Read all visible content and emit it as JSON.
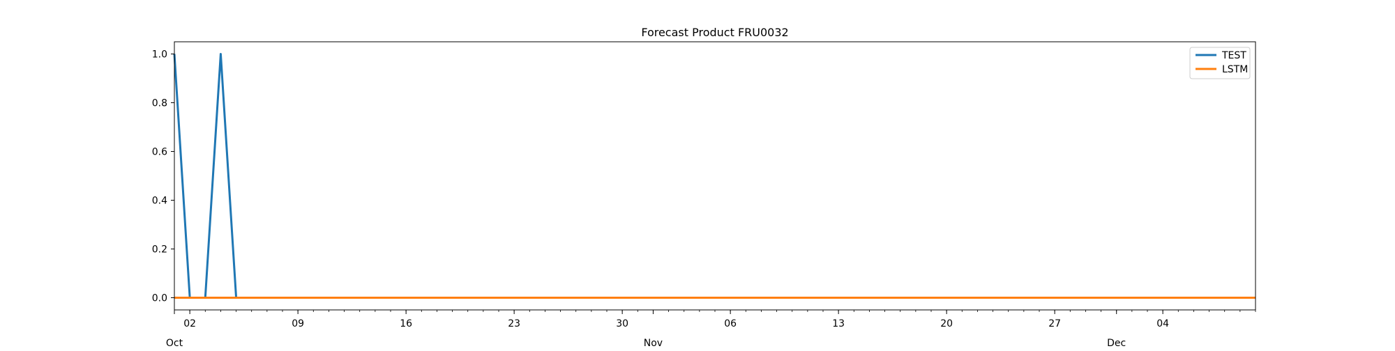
{
  "chart_data": {
    "type": "line",
    "title": "Forecast Product FRU0032",
    "xlabel": "",
    "ylabel": "",
    "x_range": [
      "2023-10-01",
      "2023-12-10"
    ],
    "ylim": [
      -0.05,
      1.05
    ],
    "y_ticks": [
      0.0,
      0.2,
      0.4,
      0.6,
      0.8,
      1.0
    ],
    "y_tick_labels": [
      "0.0",
      "0.2",
      "0.4",
      "0.6",
      "0.8",
      "1.0"
    ],
    "x_major_ticks": [
      {
        "date": "2023-10-02",
        "label": "02"
      },
      {
        "date": "2023-10-09",
        "label": "09"
      },
      {
        "date": "2023-10-16",
        "label": "16"
      },
      {
        "date": "2023-10-23",
        "label": "23"
      },
      {
        "date": "2023-10-30",
        "label": "30"
      },
      {
        "date": "2023-11-06",
        "label": "06"
      },
      {
        "date": "2023-11-13",
        "label": "13"
      },
      {
        "date": "2023-11-20",
        "label": "20"
      },
      {
        "date": "2023-11-27",
        "label": "27"
      },
      {
        "date": "2023-12-04",
        "label": "04"
      }
    ],
    "month_labels": [
      {
        "date": "2023-10-01",
        "label": "Oct"
      },
      {
        "date": "2023-11-01",
        "label": "Nov"
      },
      {
        "date": "2023-12-01",
        "label": "Dec"
      }
    ],
    "grid": false,
    "legend_position": "top-right",
    "series": [
      {
        "name": "TEST",
        "color": "#1f77b4",
        "points": [
          {
            "x": "2023-10-01",
            "y": 1
          },
          {
            "x": "2023-10-02",
            "y": 0
          },
          {
            "x": "2023-10-03",
            "y": 0
          },
          {
            "x": "2023-10-04",
            "y": 1
          },
          {
            "x": "2023-10-05",
            "y": 0
          },
          {
            "x": "2023-12-10",
            "y": 0
          }
        ]
      },
      {
        "name": "LSTM",
        "color": "#ff7f0e",
        "points": [
          {
            "x": "2023-10-01",
            "y": 0
          },
          {
            "x": "2023-12-10",
            "y": 0
          }
        ]
      }
    ]
  }
}
